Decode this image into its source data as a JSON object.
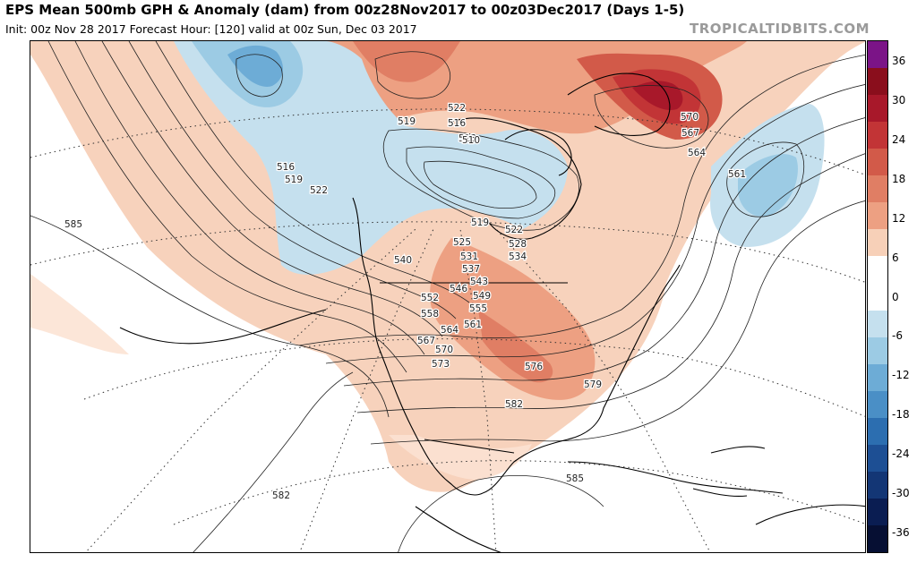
{
  "header": {
    "title": "EPS Mean 500mb GPH & Anomaly (dam) from 00z28Nov2017 to 00z03Dec2017 (Days 1-5)",
    "subtitle": "Init: 00z Nov 28 2017   Forecast Hour: [120]   valid at 00z Sun, Dec 03 2017",
    "brand": "TROPICALTIDBITS.COM"
  },
  "colorbar": {
    "ticks": [
      "36",
      "30",
      "24",
      "18",
      "12",
      "6",
      "0",
      "-6",
      "-12",
      "-18",
      "-24",
      "-30",
      "-36"
    ],
    "colors": [
      "#7b1487",
      "#8a0e1c",
      "#a8182a",
      "#c23436",
      "#d25a49",
      "#e07e64",
      "#eda082",
      "#f7d0b8",
      "#ffffff",
      "#ffffff",
      "#c5e0ee",
      "#9ccbe4",
      "#6dacd6",
      "#4a8fc6",
      "#2c6eb0",
      "#1d4f94",
      "#133675",
      "#0a1d52",
      "#060f33"
    ]
  },
  "map_labels": [
    "585",
    "519",
    "522",
    "516",
    "519",
    "522",
    "516",
    "513",
    "510",
    "519",
    "522",
    "525",
    "528",
    "531",
    "534",
    "537",
    "540",
    "543",
    "546",
    "549",
    "552",
    "555",
    "558",
    "561",
    "564",
    "567",
    "570",
    "573",
    "576",
    "579",
    "582",
    "585",
    "582",
    "570",
    "567",
    "564",
    "561"
  ]
}
